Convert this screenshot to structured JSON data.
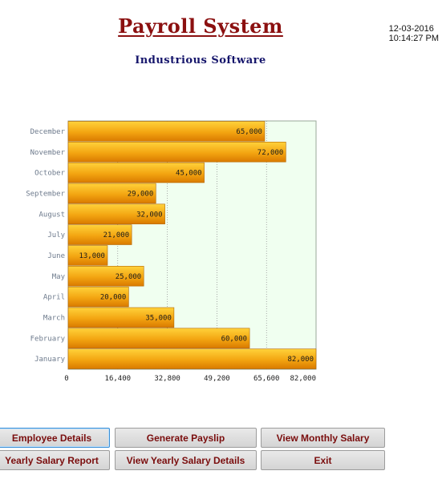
{
  "header": {
    "title": "Payroll System",
    "subtitle": "Industrious Software",
    "date": "12-03-2016",
    "time": "10:14:27 PM"
  },
  "chart_data": {
    "type": "bar",
    "orientation": "horizontal",
    "categories": [
      "January",
      "February",
      "March",
      "April",
      "May",
      "June",
      "July",
      "August",
      "September",
      "October",
      "November",
      "December"
    ],
    "values": [
      82000,
      60000,
      35000,
      20000,
      25000,
      13000,
      21000,
      32000,
      29000,
      45000,
      72000,
      65000
    ],
    "data_labels": [
      "82,000",
      "60,000",
      "35,000",
      "20,000",
      "25,000",
      "13,000",
      "21,000",
      "32,000",
      "29,000",
      "45,000",
      "72,000",
      "65,000"
    ],
    "xlim": [
      0,
      82000
    ],
    "x_ticks": [
      "0",
      "16,400",
      "32,800",
      "49,200",
      "65,600",
      "82,000"
    ],
    "grid": true,
    "colors": {
      "bar_top": "#ffd23a",
      "bar_bottom": "#d97a00",
      "plot_bg": "#f0fff0",
      "label": "#6d7a8c"
    }
  },
  "buttons": {
    "employee_details": "Employee Details",
    "generate_payslip": "Generate Payslip",
    "view_monthly_salary": "View Monthly Salary",
    "yearly_salary_report": "Yearly Salary Report",
    "view_yearly_salary_details": "View Yearly Salary Details",
    "exit": "Exit"
  }
}
